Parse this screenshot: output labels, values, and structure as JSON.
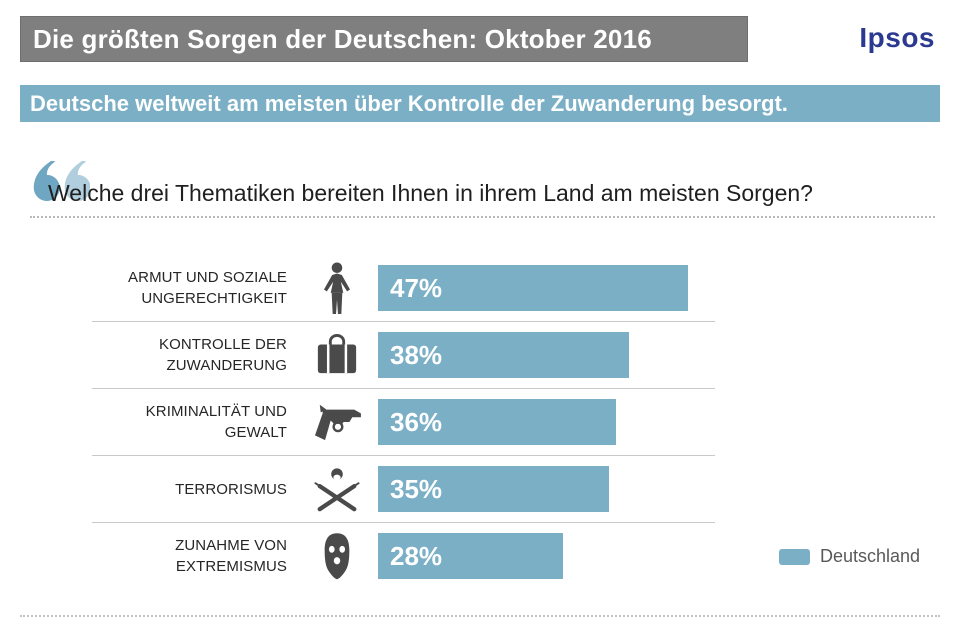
{
  "header": {
    "title": "Die größten Sorgen der Deutschen: Oktober 2016",
    "brand": "Ipsos"
  },
  "subtitle": "Deutsche weltweit am meisten über Kontrolle der Zuwanderung besorgt.",
  "question": "Welche drei Thematiken bereiten Ihnen in ihrem Land am meisten Sorgen?",
  "legend": {
    "label": "Deutschland"
  },
  "colors": {
    "accent": "#7aafc6",
    "bar": "#7aafc6",
    "header_bg": "#7f7f7f",
    "brand": "#2b3990",
    "icon": "#4a4a4a",
    "quote_front": "#6fa6c2",
    "quote_back": "#b0cedd"
  },
  "chart_data": {
    "type": "bar",
    "orientation": "horizontal",
    "series_name": "Deutschland",
    "categories": [
      "ARMUT UND SOZIALE UNGERECHTIGKEIT",
      "KONTROLLE DER ZUWANDERUNG",
      "KRIMINALITÄT UND GEWALT",
      "TERRORISMUS",
      "ZUNAHME VON EXTREMISMUS"
    ],
    "category_lines": [
      [
        "ARMUT UND SOZIALE",
        "UNGERECHTIGKEIT"
      ],
      [
        "KONTROLLE DER",
        "ZUWANDERUNG"
      ],
      [
        "KRIMINALITÄT UND",
        "GEWALT"
      ],
      [
        "TERRORISMUS"
      ],
      [
        "ZUNAHME VON",
        "EXTREMISMUS"
      ]
    ],
    "values": [
      47,
      38,
      36,
      35,
      28
    ],
    "value_labels": [
      "47%",
      "38%",
      "36%",
      "35%",
      "28%"
    ],
    "icons": [
      "person-icon",
      "suitcase-icon",
      "revolver-icon",
      "crossed-rifles-icon",
      "balaclava-icon"
    ],
    "xlim": [
      0,
      100
    ],
    "grid": false,
    "legend_position": "bottom-right"
  }
}
